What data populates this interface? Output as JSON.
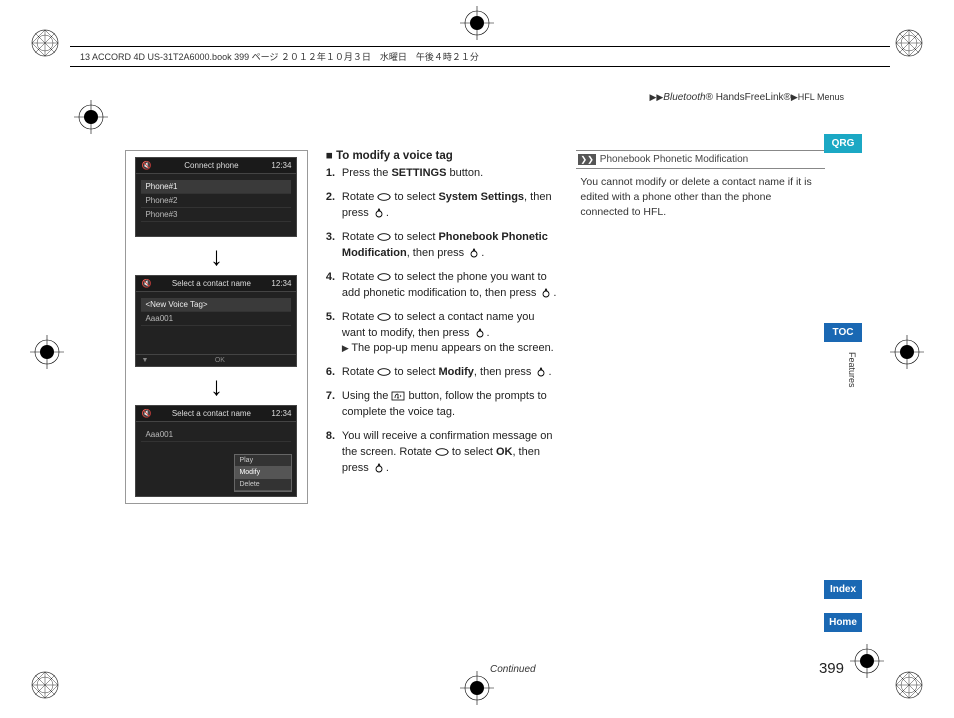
{
  "header_bar": "13 ACCORD 4D US-31T2A6000.book  399 ページ  ２０１２年１０月３日　水曜日　午後４時２１分",
  "breadcrumb": {
    "pre": "▶▶",
    "a": "Bluetooth",
    "a_suffix": "® HandsFreeLink®",
    "b": "▶HFL Menus"
  },
  "screens": [
    {
      "title": "Connect phone",
      "time": "12:34",
      "rows": [
        "Phone#1",
        "Phone#2",
        "Phone#3"
      ],
      "highlight": 0
    },
    {
      "title": "Select a contact name",
      "time": "12:34",
      "rows": [
        "<New Voice Tag>",
        "Aaa001"
      ],
      "highlight": 0,
      "footer_mid": "OK"
    },
    {
      "title": "Select a contact name",
      "time": "12:34",
      "rows": [
        "Aaa001"
      ],
      "popup": [
        "Play",
        "Modify",
        "Delete"
      ],
      "popup_highlight": 1
    }
  ],
  "section_title": "To modify a voice tag",
  "steps": [
    {
      "n": "1.",
      "html": "Press the <b>SETTINGS</b> button."
    },
    {
      "n": "2.",
      "html": "Rotate {R} to select <b>System Settings</b>, then press {P}."
    },
    {
      "n": "3.",
      "html": "Rotate {R} to select <b>Phonebook Phonetic Modification</b>, then press {P}."
    },
    {
      "n": "4.",
      "html": "Rotate {R} to select the phone you want to add phonetic modification to, then press {P}."
    },
    {
      "n": "5.",
      "html": "Rotate {R} to select a contact name you want to modify, then press {P}.",
      "sub": "The pop-up menu appears on the screen."
    },
    {
      "n": "6.",
      "html": "Rotate {R} to select <b>Modify</b>, then press {P}."
    },
    {
      "n": "7.",
      "html": "Using the {T} button, follow the prompts to complete the voice tag."
    },
    {
      "n": "8.",
      "html": "You will receive a confirmation message on the screen. Rotate {R} to select <b>OK</b>, then press {P}."
    }
  ],
  "note": {
    "header": "Phonebook Phonetic Modification",
    "body": "You cannot modify or delete a contact name if it is edited with a phone other than the phone connected to HFL."
  },
  "tabs": {
    "qrg": "QRG",
    "toc": "TOC",
    "index": "Index",
    "home": "Home"
  },
  "side_vert": "Features",
  "continued": "Continued",
  "page_num": "399",
  "icons": {
    "rotate_svg": "<svg viewBox='0 0 14 10'><ellipse cx='7' cy='5' rx='6' ry='3.3' fill='none' stroke='#000' stroke-width='0.9'/><path d='M1.5 4 L0 5 L1.5 6' fill='#000'/><path d='M12.5 4 L14 5 L12.5 6' fill='#000'/></svg>",
    "press_svg": "<svg viewBox='0 0 14 10'><circle cx='7' cy='6' r='3' fill='none' stroke='#000' stroke-width='0.9'/><path d='M7 0 L5.5 2.5 L8.5 2.5 Z' fill='#000'/></svg>",
    "talk_svg": "<svg viewBox='0 0 14 10'><rect x='1' y='1' width='12' height='8' fill='none' stroke='#000' stroke-width='0.8'/><path d='M4 7 Q4 3 7 3 M7 3 L7 7 M6 7 L8 7' fill='none' stroke='#000' stroke-width='0.8'/><path d='M9 4 Q11 5 9 6' fill='none' stroke='#000' stroke-width='0.6'/></svg>"
  }
}
